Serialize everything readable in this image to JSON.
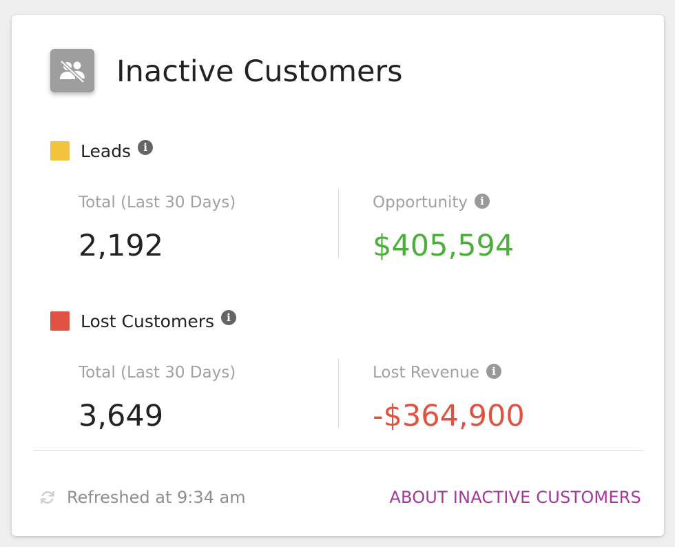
{
  "header": {
    "title": "Inactive Customers",
    "icon": "group-off-icon"
  },
  "leads": {
    "label": "Leads",
    "swatch_color": "#f2c33d",
    "total_label": "Total (Last 30 Days)",
    "total_value": "2,192",
    "opportunity_label": "Opportunity",
    "opportunity_value": "$405,594",
    "opportunity_color": "#4caf3c"
  },
  "lost": {
    "label": "Lost Customers",
    "swatch_color": "#e05241",
    "total_label": "Total (Last 30 Days)",
    "total_value": "3,649",
    "revenue_label": "Lost Revenue",
    "revenue_value": "-$364,900",
    "revenue_color": "#e05241"
  },
  "footer": {
    "refreshed_text": "Refreshed at 9:34 am",
    "about_link": "ABOUT INACTIVE CUSTOMERS",
    "link_color": "#a3389a"
  }
}
